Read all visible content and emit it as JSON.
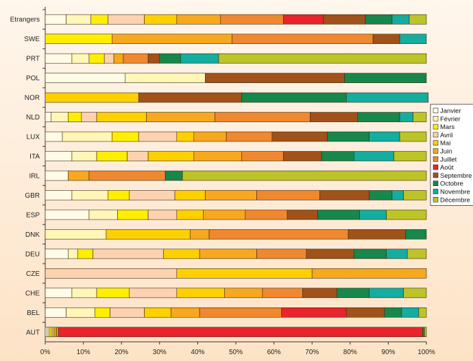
{
  "chart_data": {
    "type": "bar",
    "orientation": "horizontal",
    "stacked": true,
    "percent": true,
    "title": "",
    "xlabel": "",
    "ylabel": "",
    "xlim": [
      0,
      100
    ],
    "x_ticks": [
      "0%",
      "10%",
      "20%",
      "30%",
      "40%",
      "50%",
      "60%",
      "70%",
      "80%",
      "90%",
      "100%"
    ],
    "grid": false,
    "legend_position": "right",
    "categories": [
      "Etrangers",
      "SWE",
      "PRT",
      "POL",
      "NOR",
      "NLD",
      "LUX",
      "ITA",
      "IRL",
      "GBR",
      "ESP",
      "DNK",
      "DEU",
      "CZE",
      "CHE",
      "BEL",
      "AUT"
    ],
    "series": [
      {
        "name": "Janvier",
        "color": "#fffbe6",
        "values": [
          5.5,
          0,
          7,
          21,
          0,
          1.5,
          4.5,
          7,
          6,
          7,
          11.5,
          0,
          6,
          0,
          7,
          5.5,
          0.5
        ]
      },
      {
        "name": "Février",
        "color": "#fff6b8",
        "values": [
          6.5,
          0,
          4.5,
          21,
          0,
          4.5,
          13,
          6.5,
          0,
          9.5,
          7.5,
          16,
          2.5,
          0,
          6.5,
          7.5,
          0.5
        ]
      },
      {
        "name": "Mars",
        "color": "#ffee00",
        "values": [
          4.5,
          17.5,
          4,
          0,
          0,
          3.5,
          7,
          8,
          0,
          5.5,
          8,
          0,
          4,
          0,
          8.5,
          4,
          0.5
        ]
      },
      {
        "name": "Avril",
        "color": "#fdd2b0",
        "values": [
          9.5,
          0,
          2.5,
          0,
          0,
          4,
          10,
          5.5,
          0,
          12,
          7.5,
          0,
          18.5,
          34.5,
          12.5,
          9,
          0.5
        ]
      },
      {
        "name": "Mai",
        "color": "#ffd000",
        "values": [
          8.5,
          0,
          0,
          0,
          24.5,
          13,
          4.5,
          12,
          0,
          8,
          7,
          22,
          9.5,
          35.5,
          12.5,
          7,
          0.5
        ]
      },
      {
        "name": "Juin",
        "color": "#f7a81e",
        "values": [
          11.5,
          31.5,
          2.5,
          0,
          0,
          18,
          8.5,
          12.5,
          5.5,
          13.5,
          11,
          5,
          15,
          30,
          10,
          7.5,
          0.5
        ]
      },
      {
        "name": "Juillet",
        "color": "#f08830",
        "values": [
          16.5,
          37,
          6.5,
          0,
          0,
          25,
          12,
          11,
          20,
          16.5,
          11,
          36.5,
          13,
          0,
          10.5,
          21.5,
          0.5
        ]
      },
      {
        "name": "Août",
        "color": "#e8242c",
        "values": [
          10.5,
          0,
          0,
          0,
          0,
          0,
          0,
          0,
          0,
          0,
          0,
          0,
          0,
          0,
          0,
          17,
          95.5
        ]
      },
      {
        "name": "Septembre",
        "color": "#a0521a",
        "values": [
          11,
          7,
          3,
          36.5,
          27,
          12.5,
          14.5,
          10,
          0,
          13,
          8,
          15,
          12.5,
          0,
          9,
          10,
          0
        ]
      },
      {
        "name": "Octobre",
        "color": "#17874b",
        "values": [
          7,
          0,
          5.5,
          21.5,
          27.5,
          11,
          11,
          8.5,
          4.5,
          6,
          11,
          5.5,
          8.5,
          0,
          8.5,
          4.5,
          0.5
        ]
      },
      {
        "name": "Novembre",
        "color": "#14ada0",
        "values": [
          4.5,
          7,
          10,
          0,
          21.5,
          3.5,
          8,
          10.5,
          0,
          3,
          7,
          0,
          5.5,
          0,
          9,
          4.5,
          0
        ]
      },
      {
        "name": "Décembre",
        "color": "#bcc428",
        "values": [
          4.5,
          0,
          54.5,
          0,
          0,
          3.5,
          7,
          8.5,
          64,
          6,
          10.5,
          0,
          5,
          0,
          6,
          2,
          0.5
        ]
      }
    ]
  }
}
